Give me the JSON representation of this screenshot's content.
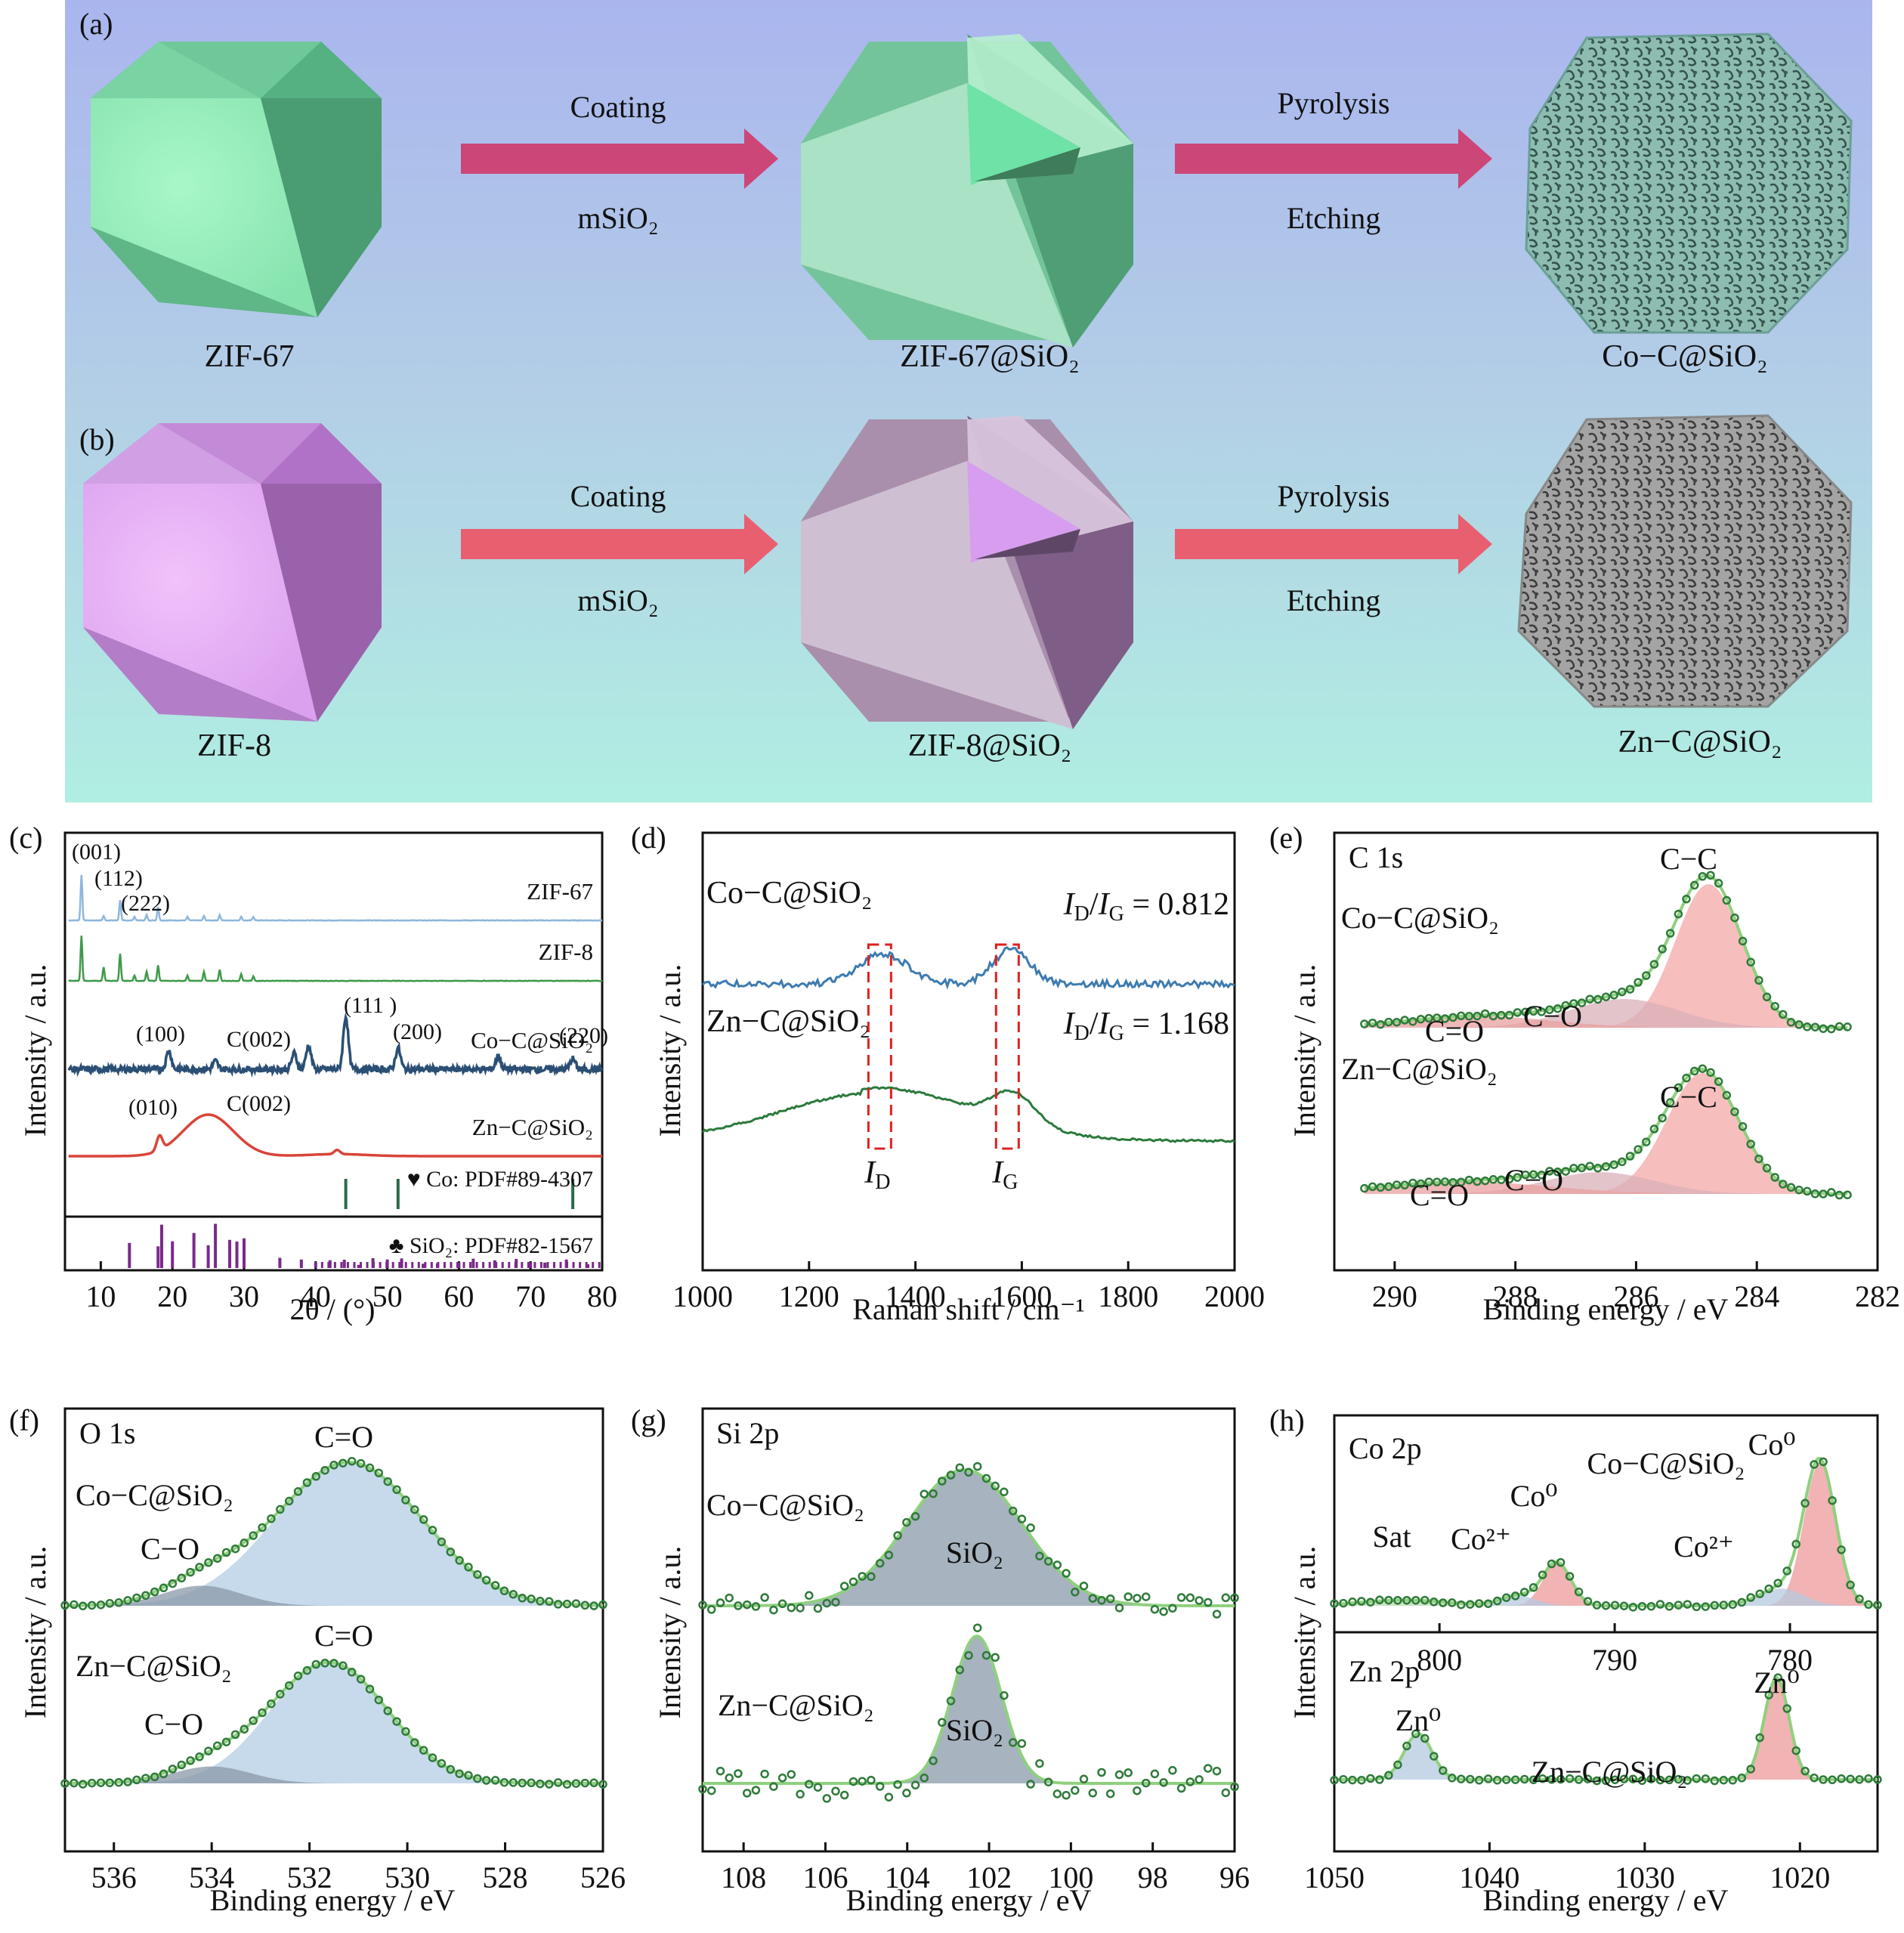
{
  "scheme": {
    "a": {
      "label": "(a)",
      "start": "ZIF-67",
      "mid": "ZIF-67@SiO₂",
      "end": "Co−C@SiO₂",
      "arrow1_top": "Coating",
      "arrow1_bottom": "mSiO₂",
      "arrow2_top": "Pyrolysis",
      "arrow2_bottom": "Etching"
    },
    "b": {
      "label": "(b)",
      "start": "ZIF-8",
      "mid": "ZIF-8@SiO₂",
      "end": "Zn−C@SiO₂",
      "arrow1_top": "Coating",
      "arrow1_bottom": "mSiO₂",
      "arrow2_top": "Pyrolysis",
      "arrow2_bottom": "Etching"
    },
    "colors": {
      "arrow_a": "#cc4677",
      "arrow_b": "#e86070",
      "zif67": "#7fdca6",
      "zif8": "#d28fe0",
      "coc": "#7fb4a8",
      "znc": "#9a9a9a"
    }
  },
  "chart_data": [
    {
      "id": "c",
      "label": "(c)",
      "type": "line",
      "xlabel": "2θ / (°)",
      "ylabel": "Intensity / a.u.",
      "xlim": [
        5,
        80
      ],
      "xticks": [
        "10",
        "20",
        "30",
        "40",
        "50",
        "60",
        "70",
        "80"
      ],
      "series": [
        {
          "name": "ZIF-67",
          "color": "#8fb7dd",
          "peaks": [
            [
              7.3,
              1
            ],
            [
              10.4,
              0.1
            ],
            [
              12.7,
              0.45
            ],
            [
              14.7,
              0.08
            ],
            [
              16.4,
              0.12
            ],
            [
              18.0,
              0.3
            ],
            [
              22.1,
              0.08
            ],
            [
              24.4,
              0.1
            ],
            [
              26.6,
              0.12
            ],
            [
              29.6,
              0.08
            ],
            [
              31.3,
              0.08
            ]
          ]
        },
        {
          "name": "ZIF-8",
          "color": "#3e9a4a",
          "peaks": [
            [
              7.3,
              1
            ],
            [
              10.4,
              0.3
            ],
            [
              12.7,
              0.6
            ],
            [
              14.7,
              0.12
            ],
            [
              16.4,
              0.2
            ],
            [
              18.0,
              0.35
            ],
            [
              22.1,
              0.12
            ],
            [
              24.4,
              0.2
            ],
            [
              26.6,
              0.25
            ],
            [
              29.6,
              0.15
            ],
            [
              31.3,
              0.1
            ]
          ]
        },
        {
          "name": "Co−C@SiO₂",
          "color": "#2b4f74",
          "peaks": [
            [
              19.5,
              0.35
            ],
            [
              26,
              0.15
            ],
            [
              37,
              0.3
            ],
            [
              39,
              0.45
            ],
            [
              44.2,
              1
            ],
            [
              51.5,
              0.4
            ],
            [
              65.5,
              0.25
            ],
            [
              75.9,
              0.2
            ]
          ]
        },
        {
          "name": "Zn−C@SiO₂",
          "color": "#d9443a",
          "peaks": [
            [
              18.2,
              0.35
            ],
            [
              25,
              1
            ],
            [
              43,
              0.1
            ]
          ]
        }
      ],
      "reference_co": {
        "name": "Co: PDF#89-4307",
        "lines": [
          44.2,
          51.5,
          75.9
        ]
      },
      "reference_sio2": {
        "name": "SiO₂: PDF#82-1567",
        "lines": [
          14,
          18,
          18.5,
          20,
          23,
          25,
          26,
          28,
          29,
          30,
          35,
          38,
          40,
          42,
          44,
          46,
          48,
          50,
          52,
          55,
          57,
          60,
          62,
          65,
          68,
          70,
          72,
          75,
          78
        ]
      },
      "annotations": {
        "h001": "(001)",
        "h112": "(112)",
        "h222": "(222)",
        "h100": "(100)",
        "c002a": "C(002)",
        "h111": "(111 )",
        "h200": "(200)",
        "h220": "(220)",
        "h010": "(010)",
        "c002b": "C(002)"
      }
    },
    {
      "id": "d",
      "label": "(d)",
      "type": "line",
      "xlabel": "Raman shift / cm⁻¹",
      "ylabel": "Intensity / a.u.",
      "xlim": [
        1000,
        2000
      ],
      "xticks": [
        "1000",
        "1200",
        "1400",
        "1600",
        "1800",
        "2000"
      ],
      "series": [
        {
          "name": "Co−C@SiO₂",
          "color": "#3d7bb0",
          "ratio": "I_D/I_G = 0.812",
          "D": 1340,
          "G": 1580
        },
        {
          "name": "Zn−C@SiO₂",
          "color": "#2b7a3c",
          "ratio": "I_D/I_G = 1.168",
          "D": 1340,
          "G": 1580
        }
      ],
      "marks": {
        "ID": "I_D",
        "IG": "I_G"
      },
      "ratio_prefix_d": "I",
      "ratio_sub_d": "D",
      "ratio_prefix_g": "I",
      "ratio_sub_g": "G",
      "ratio_co_val": " = 0.812",
      "ratio_zn_val": " = 1.168"
    },
    {
      "id": "e",
      "label": "(e)",
      "type": "area",
      "panel_title": "C 1s",
      "xlabel": "Binding energy / eV",
      "ylabel": "Intensity / a.u.",
      "xlim": [
        291,
        282
      ],
      "xticks": [
        "290",
        "288",
        "286",
        "284",
        "282"
      ],
      "series": [
        {
          "name": "Co−C@SiO₂",
          "components": [
            {
              "label": "C−C",
              "center": 284.8,
              "height": 1
            },
            {
              "label": "C−O",
              "center": 286.2,
              "height": 0.2
            },
            {
              "label": "C=O",
              "center": 288.6,
              "height": 0.08
            }
          ]
        },
        {
          "name": "Zn−C@SiO₂",
          "components": [
            {
              "label": "C−C",
              "center": 284.9,
              "height": 1
            },
            {
              "label": "C−O",
              "center": 286.6,
              "height": 0.18
            },
            {
              "label": "C=O",
              "center": 288.8,
              "height": 0.1
            }
          ]
        }
      ]
    },
    {
      "id": "f",
      "label": "(f)",
      "type": "area",
      "panel_title": "O 1s",
      "xlabel": "Binding energy / eV",
      "ylabel": "Intensity / a.u.",
      "xlim": [
        537,
        526
      ],
      "xticks": [
        "536",
        "534",
        "532",
        "530",
        "528",
        "526"
      ],
      "series": [
        {
          "name": "Co−C@SiO₂",
          "components": [
            {
              "label": "C=O",
              "center": 531.2,
              "height": 1
            },
            {
              "label": "C−O",
              "center": 534.2,
              "height": 0.14
            }
          ]
        },
        {
          "name": "Zn−C@SiO₂",
          "components": [
            {
              "label": "C=O",
              "center": 531.6,
              "height": 1
            },
            {
              "label": "C−O",
              "center": 534.0,
              "height": 0.14
            }
          ]
        }
      ]
    },
    {
      "id": "g",
      "label": "(g)",
      "type": "area",
      "panel_title": "Si 2p",
      "xlabel": "Binding energy / eV",
      "ylabel": "Intensity / a.u.",
      "xlim": [
        109,
        96
      ],
      "xticks": [
        "108",
        "106",
        "104",
        "102",
        "100",
        "98",
        "96"
      ],
      "series": [
        {
          "name": "Co−C@SiO₂",
          "components": [
            {
              "label": "SiO₂",
              "center": 102.6,
              "height": 1
            }
          ]
        },
        {
          "name": "Zn−C@SiO₂",
          "components": [
            {
              "label": "SiO₂",
              "center": 102.3,
              "height": 1
            }
          ]
        }
      ]
    },
    {
      "id": "h",
      "label": "(h)",
      "type": "area",
      "top": {
        "panel_title": "Co 2p",
        "name": "Co−C@SiO₂",
        "xlim": [
          806,
          775
        ],
        "xticks": [
          "800",
          "790",
          "780"
        ],
        "peaks": [
          {
            "label": "Co⁰",
            "center": 778.3
          },
          {
            "label": "Co²⁺",
            "center": 780.5
          },
          {
            "label": "Co⁰",
            "center": 793.3
          },
          {
            "label": "Co²⁺",
            "center": 795.5
          },
          {
            "label": "Sat",
            "center": 802
          }
        ]
      },
      "bottom": {
        "panel_title": "Zn 2p",
        "name": "Zn−C@SiO₂",
        "xlim": [
          1050,
          1015
        ],
        "xticks": [
          "1050",
          "1040",
          "1030",
          "1020"
        ],
        "peaks": [
          {
            "label": "Zn⁰",
            "center": 1021.5
          },
          {
            "label": "Zn⁰",
            "center": 1044.6
          }
        ]
      },
      "xlabel": "Binding energy / eV",
      "ylabel": "Intensity / a.u."
    }
  ]
}
